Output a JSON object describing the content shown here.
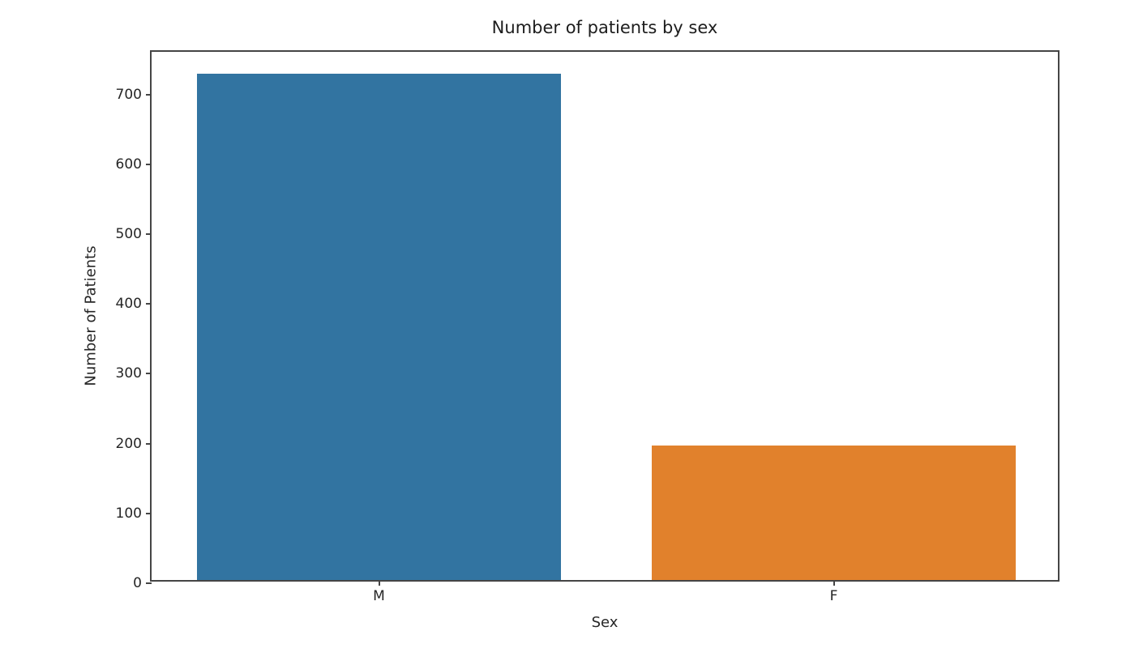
{
  "chart_data": {
    "type": "bar",
    "title": "Number of patients by sex",
    "xlabel": "Sex",
    "ylabel": "Number of Patients",
    "categories": [
      "M",
      "F"
    ],
    "values": [
      725,
      193
    ],
    "bar_colors": [
      "#3274a1",
      "#e1812c"
    ],
    "ylim": [
      0,
      761
    ],
    "yticks": [
      0,
      100,
      200,
      300,
      400,
      500,
      600,
      700
    ],
    "bar_width_fraction": 0.8,
    "grid": false,
    "legend": null,
    "background_color": "#ffffff",
    "spine_color": "#454545",
    "text_color": "#262626"
  }
}
